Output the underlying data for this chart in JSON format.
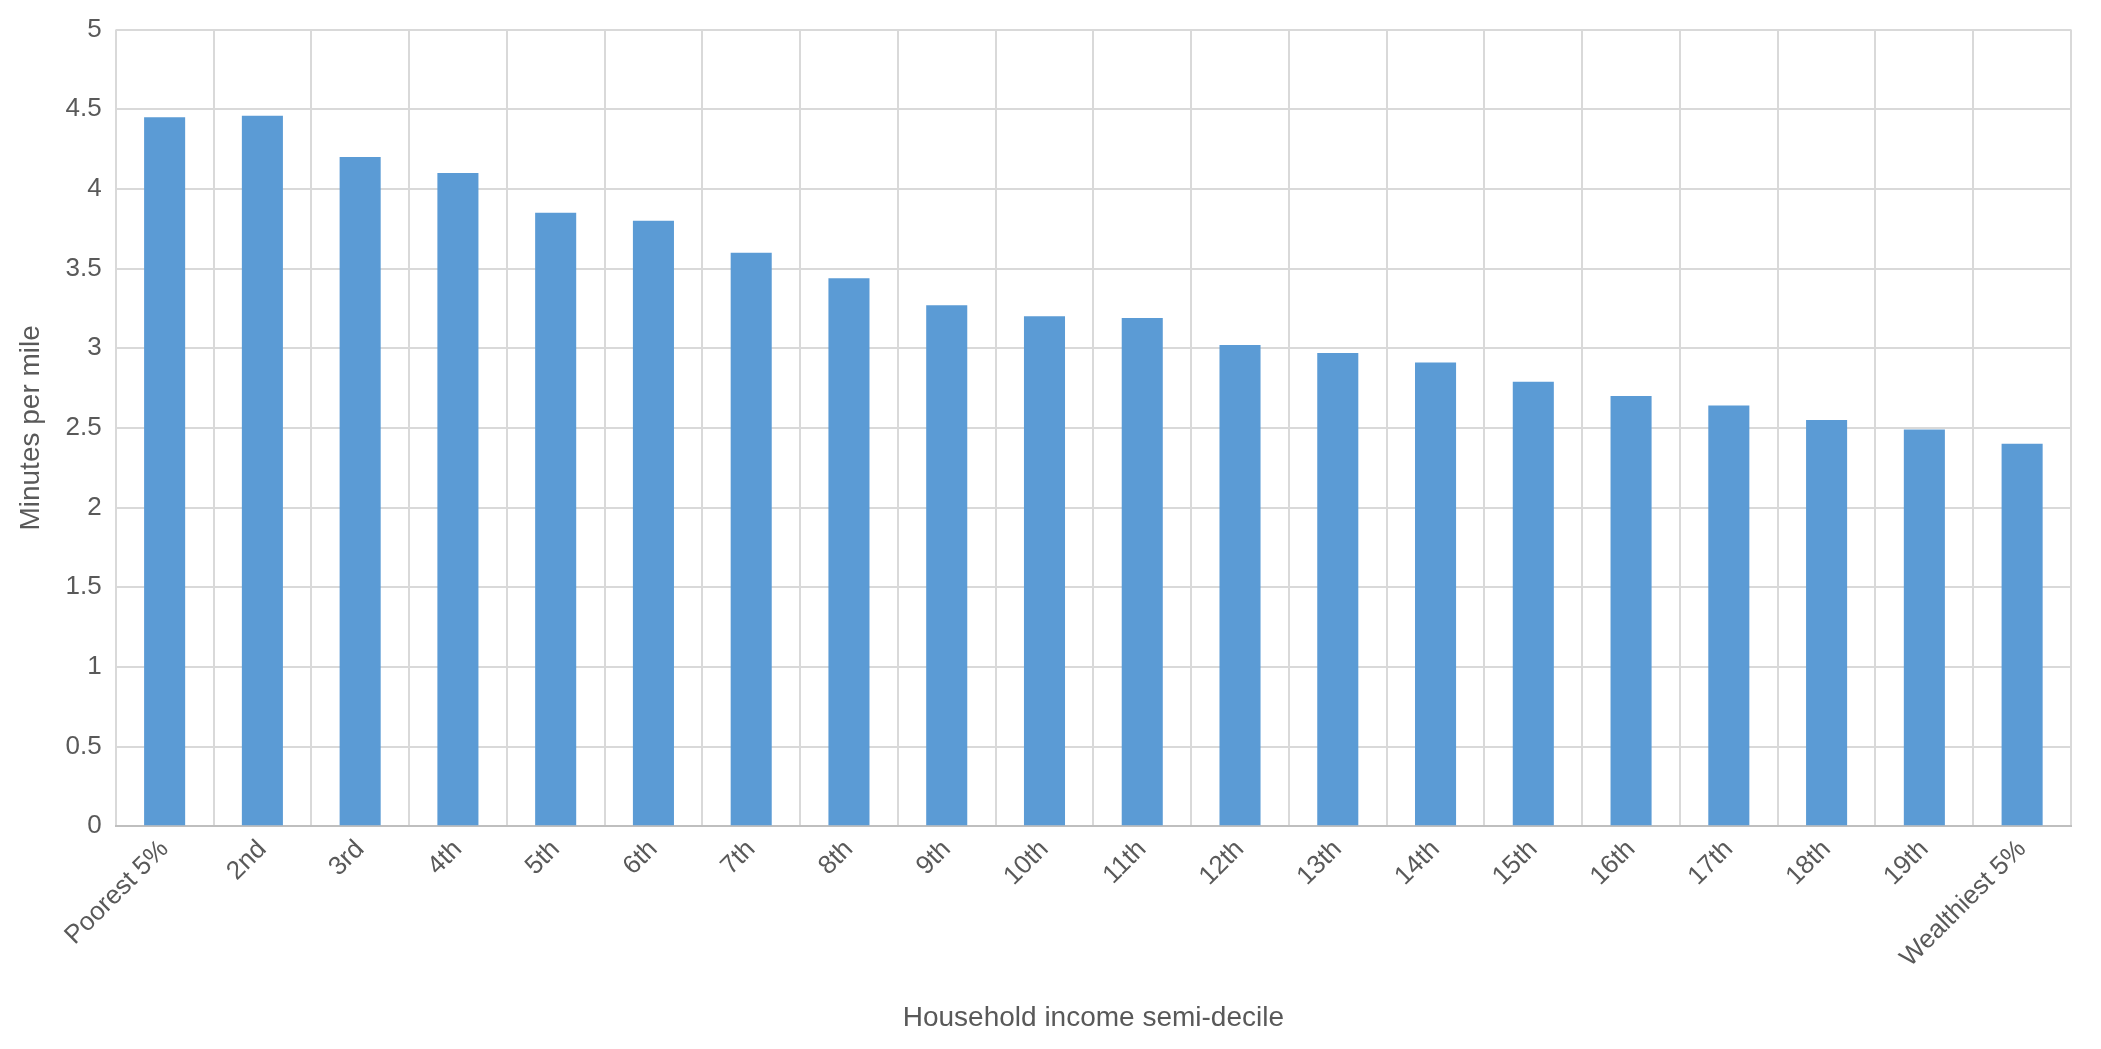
{
  "chart_data": {
    "type": "bar",
    "xlabel": "Household income semi-decile",
    "ylabel": "Minutes per mile",
    "categories": [
      "Poorest 5%",
      "2nd",
      "3rd",
      "4th",
      "5th",
      "6th",
      "7th",
      "8th",
      "9th",
      "10th",
      "11th",
      "12th",
      "13th",
      "14th",
      "15th",
      "16th",
      "17th",
      "18th",
      "19th",
      "Wealthiest 5%"
    ],
    "values": [
      4.45,
      4.46,
      4.2,
      4.1,
      3.85,
      3.8,
      3.6,
      3.44,
      3.27,
      3.2,
      3.19,
      3.02,
      2.97,
      2.91,
      2.79,
      2.7,
      2.64,
      2.55,
      2.49,
      2.4
    ],
    "color": "#5b9bd5",
    "ylim": [
      0,
      5
    ],
    "yticks": [
      0,
      0.5,
      1,
      1.5,
      2,
      2.5,
      3,
      3.5,
      4,
      4.5,
      5
    ],
    "grid": true,
    "legend": false
  }
}
